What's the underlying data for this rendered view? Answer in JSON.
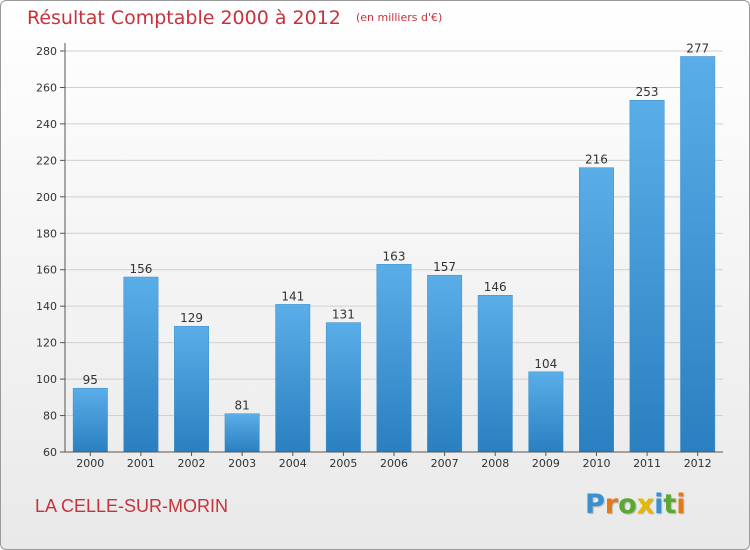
{
  "chart_data": {
    "type": "bar",
    "title": "Résultat Comptable 2000 à 2012",
    "unit_note": "(en milliers d'€)",
    "categories": [
      "2000",
      "2001",
      "2002",
      "2003",
      "2004",
      "2005",
      "2006",
      "2007",
      "2008",
      "2009",
      "2010",
      "2011",
      "2012"
    ],
    "values": [
      95,
      156,
      129,
      81,
      141,
      131,
      163,
      157,
      146,
      104,
      216,
      253,
      277
    ],
    "ylim": [
      60,
      280
    ],
    "yticks": [
      60,
      80,
      100,
      120,
      140,
      160,
      180,
      200,
      220,
      240,
      260,
      280
    ],
    "grid": true,
    "colors": {
      "bar_light": "#5aaee8",
      "bar_dark": "#2a7fc0",
      "title": "#c8323c",
      "grid": "#d0d0d0"
    }
  },
  "commune": "LA CELLE-SUR-MORIN",
  "logo": {
    "letters": [
      "P",
      "r",
      "o",
      "x",
      "i",
      "t",
      "i"
    ],
    "colors": [
      "#3a8fd0",
      "#e07a1a",
      "#5aa832",
      "#e6b800",
      "#3a8fd0",
      "#5aa832",
      "#e07a1a"
    ]
  }
}
